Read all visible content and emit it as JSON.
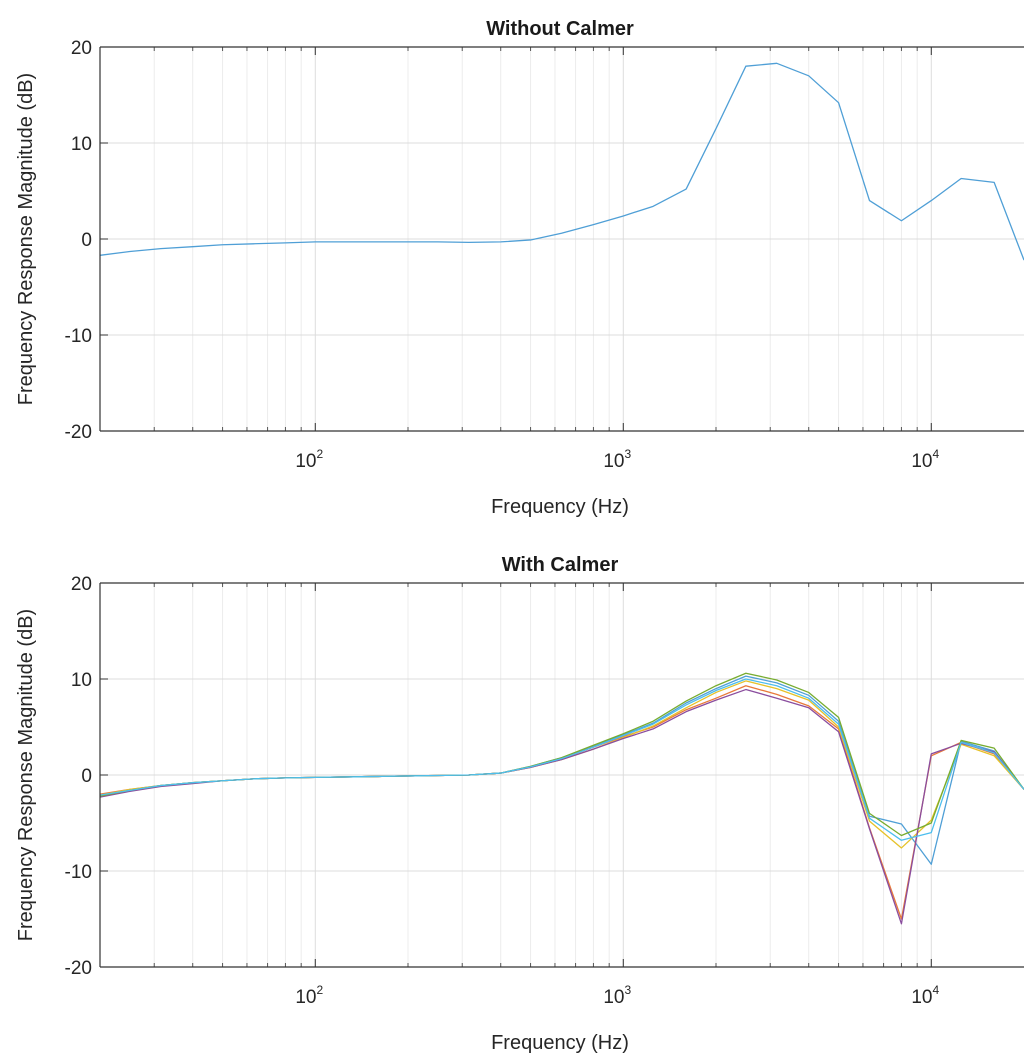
{
  "chart_data": [
    {
      "type": "line",
      "title": "Without Calmer",
      "xlabel": "Frequency (Hz)",
      "ylabel": "Frequency Response Magnitude (dB)",
      "xscale": "log",
      "xlim": [
        20,
        20000
      ],
      "ylim": [
        -20,
        20
      ],
      "xticks": [
        {
          "value": 100,
          "base": "10",
          "exp": "2"
        },
        {
          "value": 1000,
          "base": "10",
          "exp": "3"
        },
        {
          "value": 10000,
          "base": "10",
          "exp": "4"
        }
      ],
      "yticks": [
        {
          "value": 20,
          "label": "20"
        },
        {
          "value": 10,
          "label": "10"
        },
        {
          "value": 0,
          "label": "0"
        },
        {
          "value": -10,
          "label": "-10"
        },
        {
          "value": -20,
          "label": "-20"
        }
      ],
      "grid": true,
      "series": [
        {
          "color": "#4f9fd6",
          "x": [
            20,
            25,
            31.5,
            40,
            50,
            63,
            80,
            100,
            125,
            160,
            200,
            250,
            315,
            400,
            500,
            630,
            800,
            1000,
            1250,
            1600,
            2000,
            2500,
            3150,
            4000,
            5000,
            6300,
            8000,
            10000,
            12500,
            16000,
            20000
          ],
          "y": [
            -1.7,
            -1.3,
            -1.0,
            -0.8,
            -0.6,
            -0.5,
            -0.4,
            -0.3,
            -0.3,
            -0.3,
            -0.3,
            -0.3,
            -0.35,
            -0.3,
            -0.1,
            0.6,
            1.5,
            2.4,
            3.4,
            5.2,
            11.5,
            18.0,
            18.3,
            17.0,
            14.2,
            4.0,
            1.9,
            4.0,
            6.3,
            5.9,
            -2.2
          ]
        }
      ]
    },
    {
      "type": "line",
      "title": "With Calmer",
      "xlabel": "Frequency (Hz)",
      "ylabel": "Frequency Response Magnitude (dB)",
      "xscale": "log",
      "xlim": [
        20,
        20000
      ],
      "ylim": [
        -20,
        20
      ],
      "xticks": [
        {
          "value": 100,
          "base": "10",
          "exp": "2"
        },
        {
          "value": 1000,
          "base": "10",
          "exp": "3"
        },
        {
          "value": 10000,
          "base": "10",
          "exp": "4"
        }
      ],
      "yticks": [
        {
          "value": 20,
          "label": "20"
        },
        {
          "value": 10,
          "label": "10"
        },
        {
          "value": 0,
          "label": "0"
        },
        {
          "value": -10,
          "label": "-10"
        },
        {
          "value": -20,
          "label": "-20"
        }
      ],
      "grid": true,
      "series": [
        {
          "color": "#4f9fd6",
          "x": [
            20,
            25,
            31.5,
            40,
            50,
            63,
            80,
            100,
            125,
            160,
            200,
            250,
            315,
            400,
            500,
            630,
            800,
            1000,
            1250,
            1600,
            2000,
            2500,
            3150,
            4000,
            5000,
            6300,
            8000,
            10000,
            12500,
            16000,
            20000
          ],
          "y": [
            -2.2,
            -1.6,
            -1.1,
            -0.8,
            -0.6,
            -0.4,
            -0.3,
            -0.25,
            -0.2,
            -0.15,
            -0.1,
            -0.05,
            0.0,
            0.2,
            0.9,
            1.8,
            3.0,
            4.2,
            5.4,
            7.5,
            9.0,
            10.3,
            9.6,
            8.3,
            5.6,
            -4.3,
            -5.1,
            -9.3,
            3.5,
            2.5,
            -1.5
          ]
        },
        {
          "color": "#e8793a",
          "x": [
            20,
            25,
            31.5,
            40,
            50,
            63,
            80,
            100,
            125,
            160,
            200,
            250,
            315,
            400,
            500,
            630,
            800,
            1000,
            1250,
            1600,
            2000,
            2500,
            3150,
            4000,
            5000,
            6300,
            8000,
            10000,
            12500,
            16000,
            20000
          ],
          "y": [
            -2.0,
            -1.5,
            -1.1,
            -0.8,
            -0.6,
            -0.4,
            -0.3,
            -0.25,
            -0.2,
            -0.15,
            -0.1,
            -0.05,
            0.0,
            0.2,
            0.8,
            1.7,
            2.9,
            4.0,
            5.0,
            6.8,
            8.0,
            9.3,
            8.4,
            7.2,
            4.8,
            -5.5,
            -15.0,
            2.0,
            3.4,
            2.2,
            -1.5
          ]
        },
        {
          "color": "#e6c229",
          "x": [
            20,
            25,
            31.5,
            40,
            50,
            63,
            80,
            100,
            125,
            160,
            200,
            250,
            315,
            400,
            500,
            630,
            800,
            1000,
            1250,
            1600,
            2000,
            2500,
            3150,
            4000,
            5000,
            6300,
            8000,
            10000,
            12500,
            16000,
            20000
          ],
          "y": [
            -2.1,
            -1.5,
            -1.1,
            -0.8,
            -0.6,
            -0.4,
            -0.3,
            -0.25,
            -0.2,
            -0.15,
            -0.1,
            -0.05,
            0.0,
            0.2,
            0.8,
            1.6,
            2.7,
            3.9,
            5.1,
            7.0,
            8.6,
            9.8,
            9.0,
            7.8,
            5.0,
            -4.8,
            -7.6,
            -4.7,
            3.2,
            2.0,
            -1.5
          ]
        },
        {
          "color": "#8a4d9e",
          "x": [
            20,
            25,
            31.5,
            40,
            50,
            63,
            80,
            100,
            125,
            160,
            200,
            250,
            315,
            400,
            500,
            630,
            800,
            1000,
            1250,
            1600,
            2000,
            2500,
            3150,
            4000,
            5000,
            6300,
            8000,
            10000,
            12500,
            16000,
            20000
          ],
          "y": [
            -2.3,
            -1.7,
            -1.2,
            -0.9,
            -0.6,
            -0.4,
            -0.3,
            -0.25,
            -0.2,
            -0.15,
            -0.1,
            -0.05,
            0.0,
            0.2,
            0.8,
            1.6,
            2.7,
            3.8,
            4.8,
            6.6,
            7.8,
            8.9,
            8.0,
            7.0,
            4.5,
            -5.6,
            -15.5,
            2.2,
            3.3,
            2.4,
            -1.5
          ]
        },
        {
          "color": "#77ac30",
          "x": [
            20,
            25,
            31.5,
            40,
            50,
            63,
            80,
            100,
            125,
            160,
            200,
            250,
            315,
            400,
            500,
            630,
            800,
            1000,
            1250,
            1600,
            2000,
            2500,
            3150,
            4000,
            5000,
            6300,
            8000,
            10000,
            12500,
            16000,
            20000
          ],
          "y": [
            -2.2,
            -1.6,
            -1.1,
            -0.8,
            -0.6,
            -0.4,
            -0.3,
            -0.25,
            -0.2,
            -0.15,
            -0.1,
            -0.05,
            0.0,
            0.2,
            0.9,
            1.8,
            3.1,
            4.3,
            5.6,
            7.7,
            9.3,
            10.6,
            9.9,
            8.6,
            6.0,
            -4.0,
            -6.3,
            -5.0,
            3.6,
            2.8,
            -1.5
          ]
        },
        {
          "color": "#4dbeee",
          "x": [
            20,
            25,
            31.5,
            40,
            50,
            63,
            80,
            100,
            125,
            160,
            200,
            250,
            315,
            400,
            500,
            630,
            800,
            1000,
            1250,
            1600,
            2000,
            2500,
            3150,
            4000,
            5000,
            6300,
            8000,
            10000,
            12500,
            16000,
            20000
          ],
          "y": [
            -2.1,
            -1.6,
            -1.1,
            -0.8,
            -0.6,
            -0.4,
            -0.3,
            -0.25,
            -0.2,
            -0.15,
            -0.1,
            -0.05,
            0.0,
            0.2,
            0.85,
            1.7,
            2.9,
            4.1,
            5.3,
            7.3,
            8.8,
            10.0,
            9.3,
            8.0,
            5.3,
            -4.5,
            -6.8,
            -6.0,
            3.4,
            2.3,
            -1.5
          ]
        }
      ]
    }
  ]
}
